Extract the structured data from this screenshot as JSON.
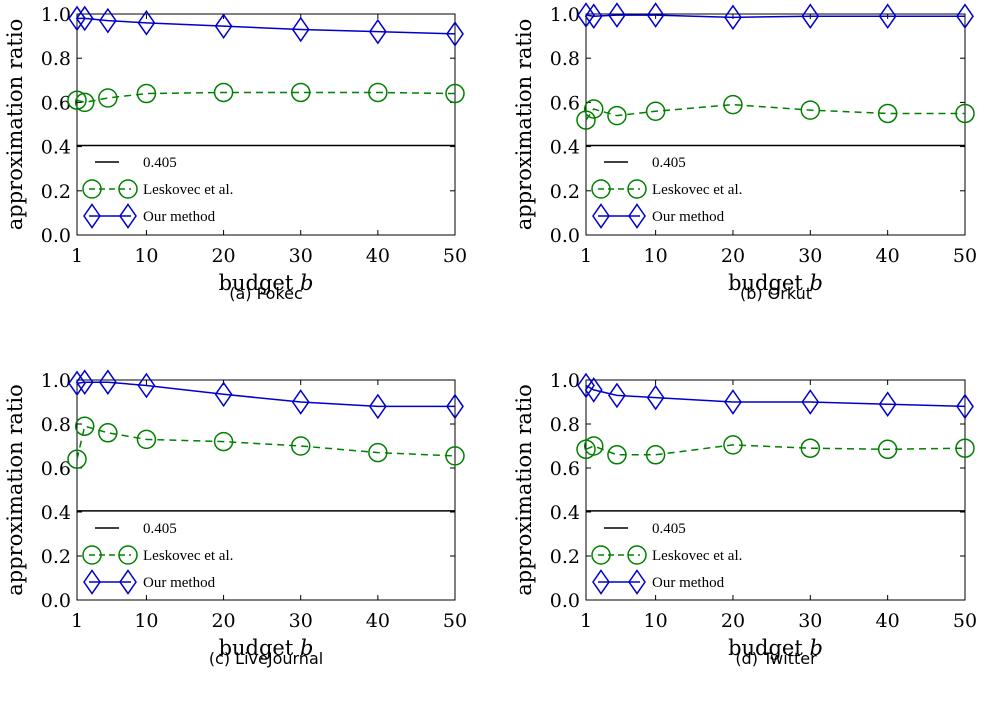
{
  "colors": {
    "baseline": "#000000",
    "leskovec": "#008000",
    "ours": "#0000cc"
  },
  "chart_data": [
    {
      "type": "line",
      "caption": "(a) Pokec",
      "xlabel_text": "budget ",
      "xlabel_var": "b",
      "ylabel": "approximation ratio",
      "x": [
        1,
        2,
        5,
        10,
        20,
        30,
        40,
        50
      ],
      "xticks": [
        1,
        10,
        20,
        30,
        40,
        50
      ],
      "yticks": [
        "0.0",
        "0.2",
        "0.4",
        "0.6",
        "0.8",
        "1.0"
      ],
      "ylim": [
        0,
        1
      ],
      "xlim": [
        1,
        50
      ],
      "legend_position": "lower-left",
      "series": [
        {
          "name": "0.405",
          "style": "solid",
          "marker": "none",
          "values": [
            0.405,
            0.405,
            0.405,
            0.405,
            0.405,
            0.405,
            0.405,
            0.405
          ]
        },
        {
          "name": "Leskovec et al.",
          "style": "dashed",
          "marker": "circle",
          "values": [
            0.61,
            0.6,
            0.62,
            0.64,
            0.645,
            0.645,
            0.645,
            0.64
          ]
        },
        {
          "name": "Our method",
          "style": "solid",
          "marker": "diamond",
          "values": [
            0.98,
            0.98,
            0.97,
            0.96,
            0.945,
            0.93,
            0.92,
            0.91
          ]
        }
      ]
    },
    {
      "type": "line",
      "caption": "(b) Orkut",
      "xlabel_text": "budget ",
      "xlabel_var": "b",
      "ylabel": "approximation ratio",
      "x": [
        1,
        2,
        5,
        10,
        20,
        30,
        40,
        50
      ],
      "xticks": [
        1,
        10,
        20,
        30,
        40,
        50
      ],
      "yticks": [
        "0.0",
        "0.2",
        "0.4",
        "0.6",
        "0.8",
        "1.0"
      ],
      "ylim": [
        0,
        1
      ],
      "xlim": [
        1,
        50
      ],
      "legend_position": "lower-left",
      "series": [
        {
          "name": "0.405",
          "style": "solid",
          "marker": "none",
          "values": [
            0.405,
            0.405,
            0.405,
            0.405,
            0.405,
            0.405,
            0.405,
            0.405
          ]
        },
        {
          "name": "Leskovec et al.",
          "style": "dashed",
          "marker": "circle",
          "values": [
            0.52,
            0.57,
            0.54,
            0.56,
            0.59,
            0.565,
            0.55,
            0.55
          ]
        },
        {
          "name": "Our method",
          "style": "solid",
          "marker": "diamond",
          "values": [
            0.995,
            0.99,
            0.995,
            0.995,
            0.985,
            0.99,
            0.99,
            0.99
          ]
        }
      ]
    },
    {
      "type": "line",
      "caption": "(c) LiveJournal",
      "xlabel_text": "budget ",
      "xlabel_var": "b",
      "ylabel": "approximation ratio",
      "x": [
        1,
        2,
        5,
        10,
        20,
        30,
        40,
        50
      ],
      "xticks": [
        1,
        10,
        20,
        30,
        40,
        50
      ],
      "yticks": [
        "0.0",
        "0.2",
        "0.4",
        "0.6",
        "0.8",
        "1.0"
      ],
      "ylim": [
        0,
        1
      ],
      "xlim": [
        1,
        50
      ],
      "legend_position": "lower-left",
      "series": [
        {
          "name": "0.405",
          "style": "solid",
          "marker": "none",
          "values": [
            0.405,
            0.405,
            0.405,
            0.405,
            0.405,
            0.405,
            0.405,
            0.405
          ]
        },
        {
          "name": "Leskovec et al.",
          "style": "dashed",
          "marker": "circle",
          "values": [
            0.64,
            0.79,
            0.76,
            0.73,
            0.72,
            0.7,
            0.67,
            0.655
          ]
        },
        {
          "name": "Our method",
          "style": "solid",
          "marker": "diamond",
          "values": [
            0.985,
            0.99,
            0.99,
            0.975,
            0.935,
            0.9,
            0.88,
            0.88
          ]
        }
      ]
    },
    {
      "type": "line",
      "caption": "(d) Twitter",
      "xlabel_text": "budget ",
      "xlabel_var": "b",
      "ylabel": "approximation ratio",
      "x": [
        1,
        2,
        5,
        10,
        20,
        30,
        40,
        50
      ],
      "xticks": [
        1,
        10,
        20,
        30,
        40,
        50
      ],
      "yticks": [
        "0.0",
        "0.2",
        "0.4",
        "0.6",
        "0.8",
        "1.0"
      ],
      "ylim": [
        0,
        1
      ],
      "xlim": [
        1,
        50
      ],
      "legend_position": "lower-left",
      "series": [
        {
          "name": "0.405",
          "style": "solid",
          "marker": "none",
          "values": [
            0.405,
            0.405,
            0.405,
            0.405,
            0.405,
            0.405,
            0.405,
            0.405
          ]
        },
        {
          "name": "Leskovec et al.",
          "style": "dashed",
          "marker": "circle",
          "values": [
            0.685,
            0.7,
            0.66,
            0.66,
            0.705,
            0.69,
            0.685,
            0.69
          ]
        },
        {
          "name": "Our method",
          "style": "solid",
          "marker": "diamond",
          "values": [
            0.975,
            0.955,
            0.93,
            0.92,
            0.9,
            0.9,
            0.89,
            0.88
          ]
        }
      ]
    }
  ]
}
